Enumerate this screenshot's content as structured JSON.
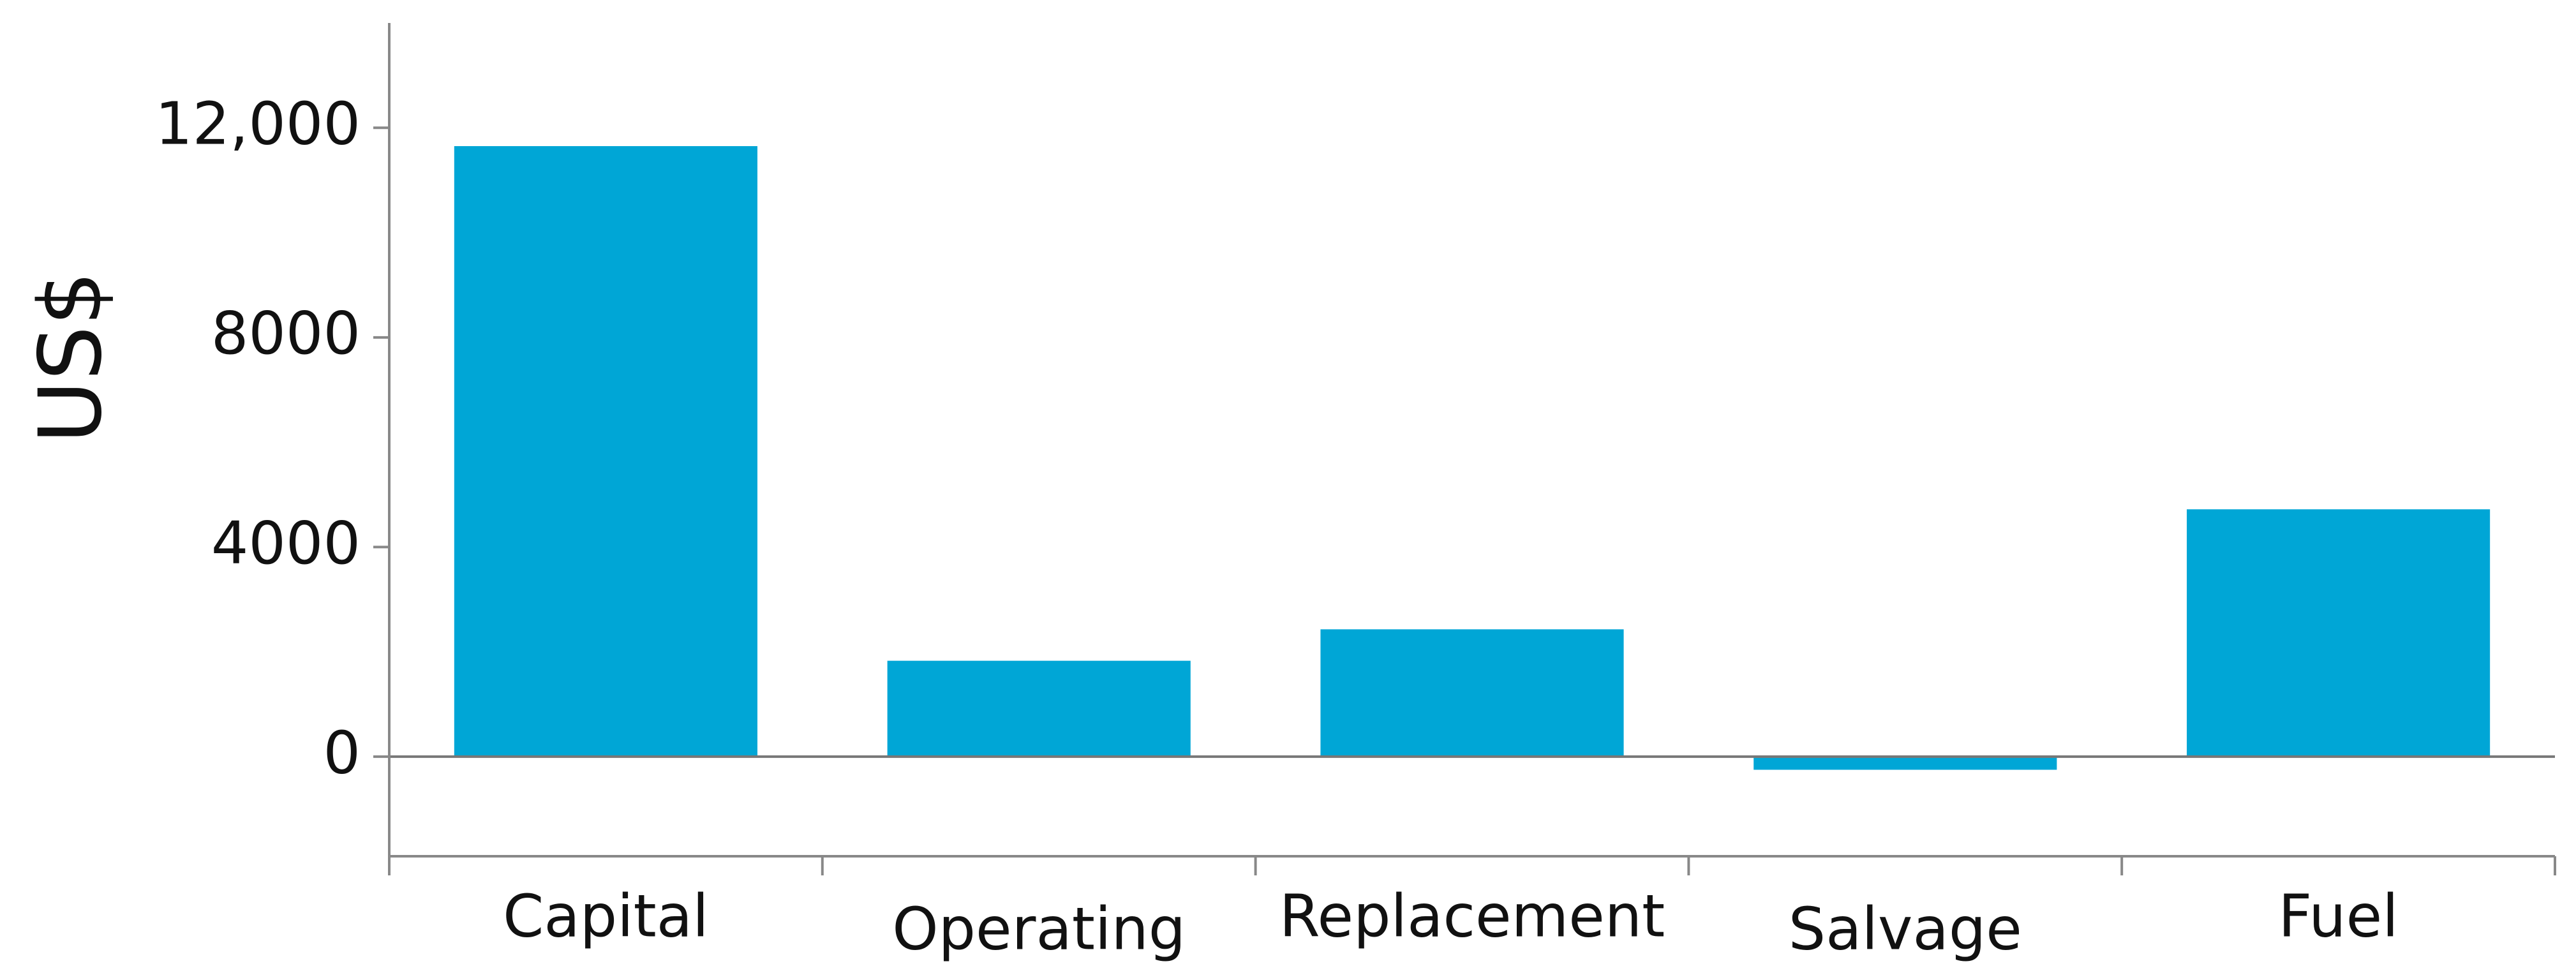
{
  "chart_data": {
    "type": "bar",
    "ylabel": "US$",
    "categories": [
      "Capital",
      "Operating",
      "Replacement",
      "Salvage",
      "Fuel"
    ],
    "values": [
      11650,
      1830,
      2430,
      -250,
      4720
    ],
    "color": "#00a6d6",
    "ylim": [
      -1900,
      14000
    ],
    "yticks": [
      0,
      4000,
      8000,
      {
        "value": 12000,
        "label": "12,000"
      }
    ]
  }
}
